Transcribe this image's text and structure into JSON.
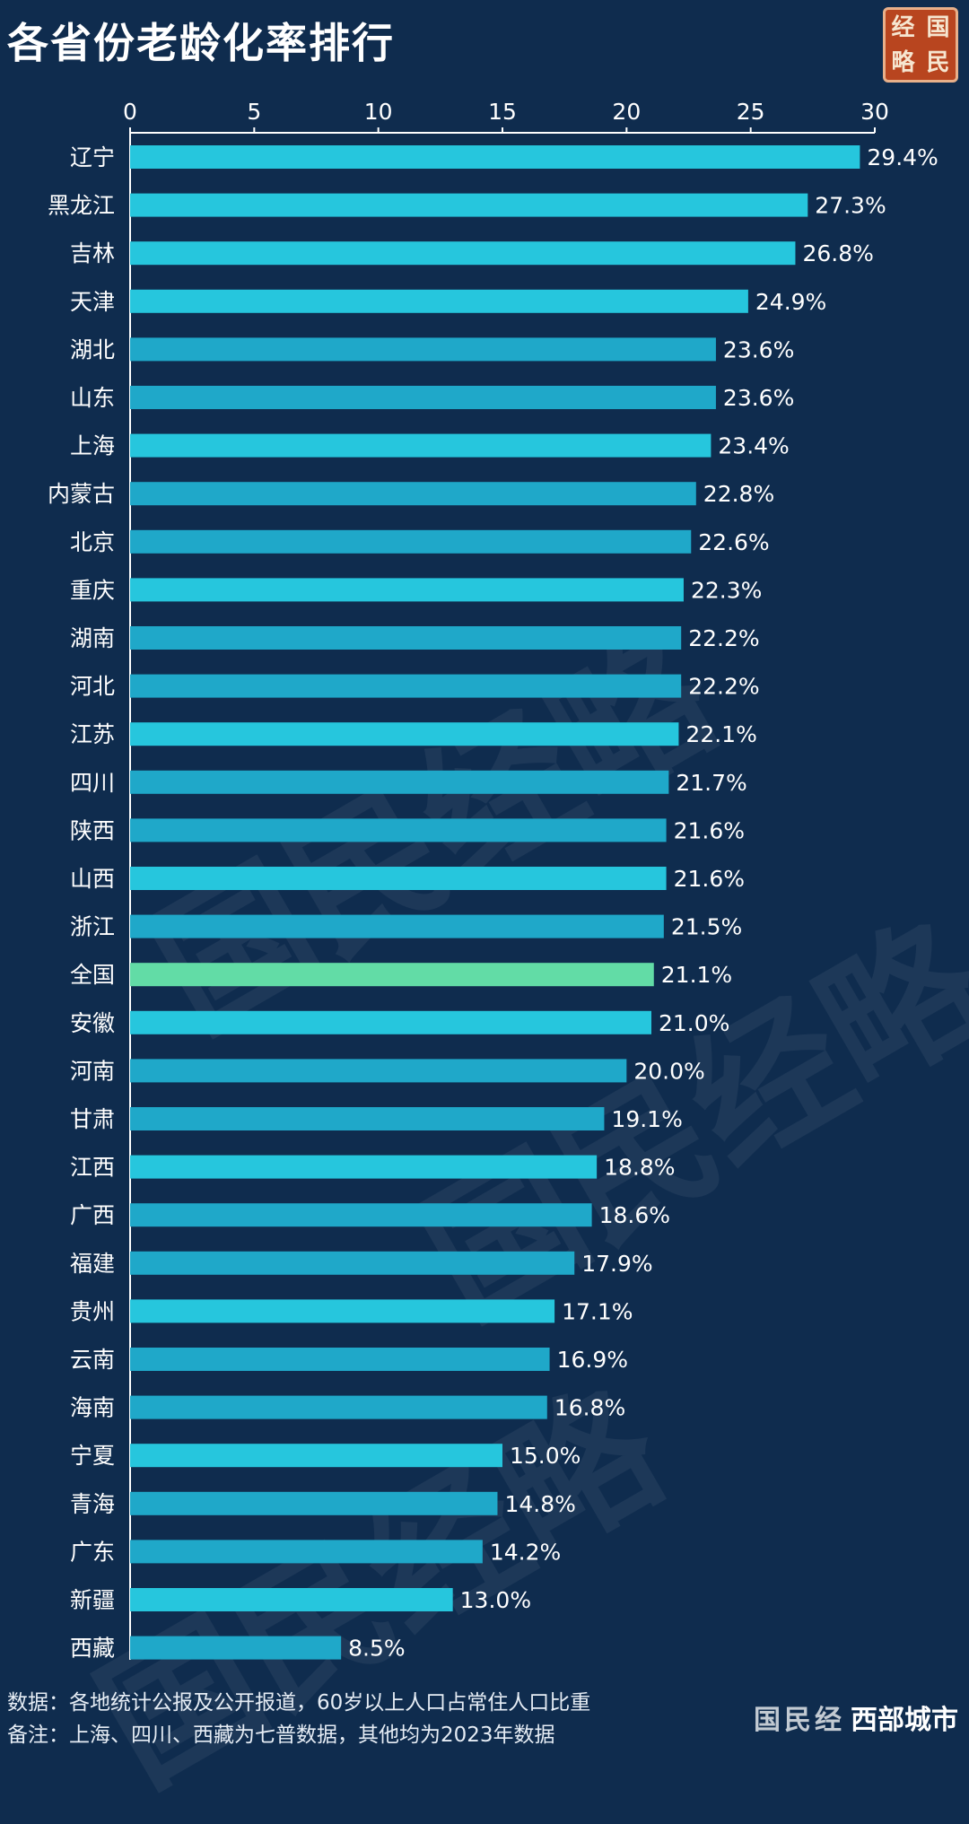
{
  "title": "各省份老龄化率排行",
  "brand": {
    "seal_chars": [
      "经",
      "国",
      "略",
      "民"
    ],
    "watermark_text": "国民经略",
    "bottom_text": "国民经",
    "bottom_overlay": "西部城市"
  },
  "notes": {
    "source": "数据：各地统计公报及公开报道，60岁以上人口占常住人口比重",
    "remark": "备注：上海、四川、西藏为七普数据，其他均为2023年数据"
  },
  "colors": {
    "background": "#0f2c4e",
    "bar_bright": "#26c6dd",
    "bar_mid": "#1fa8c9",
    "bar_highlight": "#62dca6",
    "text": "#ffffff"
  },
  "chart_data": {
    "type": "bar",
    "orientation": "horizontal",
    "title": "各省份老龄化率排行",
    "xlim": [
      0,
      30
    ],
    "xticks": [
      0,
      5,
      10,
      15,
      20,
      25,
      30
    ],
    "axis_position": "top",
    "grid": false,
    "value_suffix": "%",
    "highlight": "全国",
    "categories": [
      "辽宁",
      "黑龙江",
      "吉林",
      "天津",
      "湖北",
      "山东",
      "上海",
      "内蒙古",
      "北京",
      "重庆",
      "湖南",
      "河北",
      "江苏",
      "四川",
      "陕西",
      "山西",
      "浙江",
      "全国",
      "安徽",
      "河南",
      "甘肃",
      "江西",
      "广西",
      "福建",
      "贵州",
      "云南",
      "海南",
      "宁夏",
      "青海",
      "广东",
      "新疆",
      "西藏"
    ],
    "values": [
      29.4,
      27.3,
      26.8,
      24.9,
      23.6,
      23.6,
      23.4,
      22.8,
      22.6,
      22.3,
      22.2,
      22.2,
      22.1,
      21.7,
      21.6,
      21.6,
      21.5,
      21.1,
      21.0,
      20.0,
      19.1,
      18.8,
      18.6,
      17.9,
      17.1,
      16.9,
      16.8,
      15.0,
      14.8,
      14.2,
      13.0,
      8.5
    ],
    "labels": [
      "29.4%",
      "27.3%",
      "26.8%",
      "24.9%",
      "23.6%",
      "23.6%",
      "23.4%",
      "22.8%",
      "22.6%",
      "22.3%",
      "22.2%",
      "22.2%",
      "22.1%",
      "21.7%",
      "21.6%",
      "21.6%",
      "21.5%",
      "21.1%",
      "21.0%",
      "20.0%",
      "19.1%",
      "18.8%",
      "18.6%",
      "17.9%",
      "17.1%",
      "16.9%",
      "16.8%",
      "15.0%",
      "14.8%",
      "14.2%",
      "13.0%",
      "8.5%"
    ]
  }
}
